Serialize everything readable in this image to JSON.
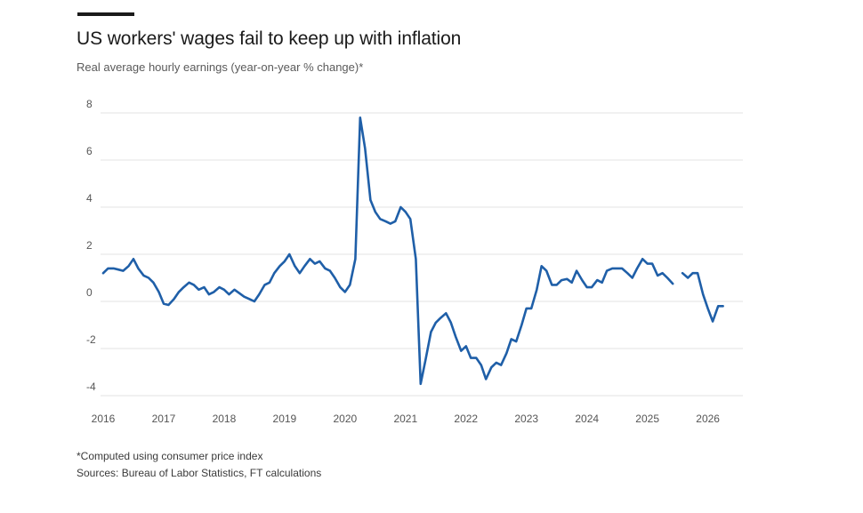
{
  "header": {
    "title": "US workers' wages fail to keep up with inflation",
    "subtitle": "Real average hourly earnings (year-on-year % change)*"
  },
  "footer": {
    "note": "*Computed using consumer price index",
    "sources": "Sources: Bureau of Labor Statistics, FT calculations"
  },
  "chart_data": {
    "type": "line",
    "title": "US workers' wages fail to keep up with inflation",
    "subtitle": "Real average hourly earnings (year-on-year % change)*",
    "xlabel": "",
    "ylabel": "",
    "x_range": [
      2016.0,
      2026.55
    ],
    "ylim": [
      -4,
      8
    ],
    "y_ticks": [
      8,
      6,
      4,
      2,
      0,
      -2,
      -4
    ],
    "x_ticks": [
      "2016",
      "2017",
      "2018",
      "2019",
      "2020",
      "2021",
      "2022",
      "2023",
      "2024",
      "2025",
      "2026"
    ],
    "grid": "horizontal",
    "line_color": "#1f5fa8",
    "grid_color": "#e3e3e3",
    "series": [
      {
        "segments": [
          [
            [
              2016.0,
              1.2
            ],
            [
              2016.08,
              1.4
            ],
            [
              2016.17,
              1.4
            ],
            [
              2016.25,
              1.35
            ],
            [
              2016.33,
              1.3
            ],
            [
              2016.42,
              1.5
            ],
            [
              2016.5,
              1.8
            ],
            [
              2016.58,
              1.4
            ],
            [
              2016.67,
              1.1
            ],
            [
              2016.75,
              1.0
            ],
            [
              2016.83,
              0.8
            ],
            [
              2016.92,
              0.4
            ],
            [
              2017.0,
              -0.1
            ],
            [
              2017.08,
              -0.15
            ],
            [
              2017.17,
              0.1
            ],
            [
              2017.25,
              0.4
            ],
            [
              2017.33,
              0.6
            ],
            [
              2017.42,
              0.8
            ],
            [
              2017.5,
              0.7
            ],
            [
              2017.58,
              0.5
            ],
            [
              2017.67,
              0.6
            ],
            [
              2017.75,
              0.3
            ],
            [
              2017.83,
              0.4
            ],
            [
              2017.92,
              0.6
            ],
            [
              2018.0,
              0.5
            ],
            [
              2018.08,
              0.3
            ],
            [
              2018.17,
              0.5
            ],
            [
              2018.25,
              0.35
            ],
            [
              2018.33,
              0.2
            ],
            [
              2018.42,
              0.1
            ],
            [
              2018.5,
              0.0
            ],
            [
              2018.58,
              0.3
            ],
            [
              2018.67,
              0.7
            ],
            [
              2018.75,
              0.8
            ],
            [
              2018.83,
              1.2
            ],
            [
              2018.92,
              1.5
            ],
            [
              2019.0,
              1.7
            ],
            [
              2019.08,
              2.0
            ],
            [
              2019.17,
              1.5
            ],
            [
              2019.25,
              1.2
            ],
            [
              2019.33,
              1.5
            ],
            [
              2019.42,
              1.8
            ],
            [
              2019.5,
              1.6
            ],
            [
              2019.58,
              1.7
            ],
            [
              2019.67,
              1.4
            ],
            [
              2019.75,
              1.3
            ],
            [
              2019.83,
              1.0
            ],
            [
              2019.92,
              0.6
            ],
            [
              2020.0,
              0.4
            ],
            [
              2020.08,
              0.7
            ],
            [
              2020.17,
              1.8
            ],
            [
              2020.25,
              7.8
            ],
            [
              2020.33,
              6.5
            ],
            [
              2020.42,
              4.3
            ],
            [
              2020.5,
              3.8
            ],
            [
              2020.58,
              3.5
            ],
            [
              2020.67,
              3.4
            ],
            [
              2020.75,
              3.3
            ],
            [
              2020.83,
              3.4
            ],
            [
              2020.92,
              4.0
            ],
            [
              2021.0,
              3.8
            ],
            [
              2021.08,
              3.5
            ],
            [
              2021.17,
              1.8
            ],
            [
              2021.25,
              -3.5
            ],
            [
              2021.33,
              -2.5
            ],
            [
              2021.42,
              -1.3
            ],
            [
              2021.5,
              -0.9
            ],
            [
              2021.58,
              -0.7
            ],
            [
              2021.67,
              -0.5
            ],
            [
              2021.75,
              -0.9
            ],
            [
              2021.83,
              -1.5
            ],
            [
              2021.92,
              -2.1
            ],
            [
              2022.0,
              -1.9
            ],
            [
              2022.08,
              -2.4
            ],
            [
              2022.17,
              -2.4
            ],
            [
              2022.25,
              -2.7
            ],
            [
              2022.33,
              -3.3
            ],
            [
              2022.42,
              -2.8
            ],
            [
              2022.5,
              -2.6
            ],
            [
              2022.58,
              -2.7
            ],
            [
              2022.67,
              -2.2
            ],
            [
              2022.75,
              -1.6
            ],
            [
              2022.83,
              -1.7
            ],
            [
              2022.92,
              -1.0
            ],
            [
              2023.0,
              -0.3
            ],
            [
              2023.08,
              -0.3
            ],
            [
              2023.17,
              0.5
            ],
            [
              2023.25,
              1.5
            ],
            [
              2023.33,
              1.3
            ],
            [
              2023.42,
              0.7
            ],
            [
              2023.5,
              0.7
            ],
            [
              2023.58,
              0.9
            ],
            [
              2023.67,
              0.95
            ],
            [
              2023.75,
              0.8
            ],
            [
              2023.83,
              1.3
            ],
            [
              2023.92,
              0.9
            ],
            [
              2024.0,
              0.6
            ],
            [
              2024.08,
              0.6
            ],
            [
              2024.17,
              0.9
            ],
            [
              2024.25,
              0.8
            ],
            [
              2024.33,
              1.3
            ],
            [
              2024.42,
              1.4
            ],
            [
              2024.5,
              1.4
            ],
            [
              2024.58,
              1.4
            ],
            [
              2024.67,
              1.2
            ],
            [
              2024.75,
              1.0
            ],
            [
              2024.83,
              1.4
            ],
            [
              2024.92,
              1.8
            ],
            [
              2025.0,
              1.6
            ],
            [
              2025.08,
              1.6
            ],
            [
              2025.17,
              1.1
            ],
            [
              2025.25,
              1.2
            ],
            [
              2025.33,
              1.0
            ],
            [
              2025.42,
              0.75
            ]
          ],
          [
            [
              2025.58,
              1.2
            ],
            [
              2025.67,
              1.0
            ],
            [
              2025.75,
              1.2
            ],
            [
              2025.83,
              1.2
            ],
            [
              2025.92,
              0.3
            ],
            [
              2026.0,
              -0.3
            ],
            [
              2026.08,
              -0.85
            ],
            [
              2026.17,
              -0.2
            ],
            [
              2026.25,
              -0.2
            ]
          ]
        ]
      }
    ]
  }
}
